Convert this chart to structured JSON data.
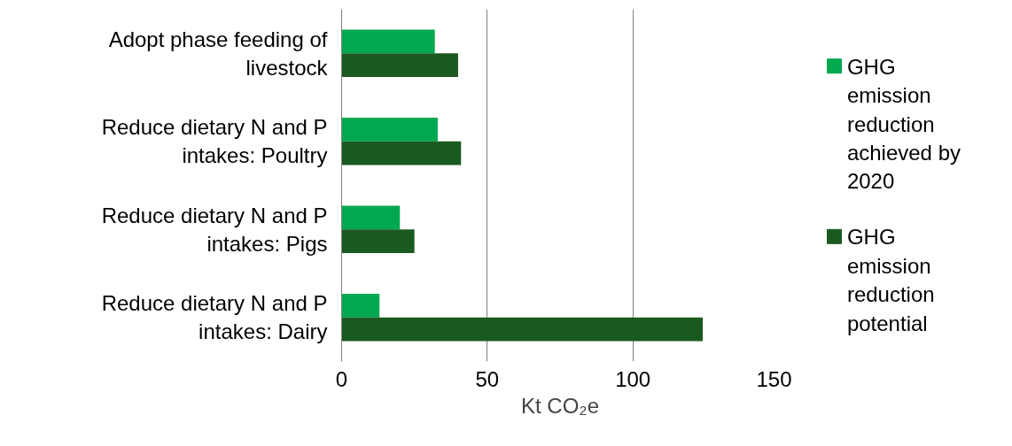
{
  "chart_data": {
    "type": "bar",
    "orientation": "horizontal",
    "xlabel": "Kt CO₂e",
    "categories": [
      "Adopt phase feeding of livestock",
      "Reduce dietary N and P intakes: Poultry",
      "Reduce dietary N and P intakes: Pigs",
      "Reduce dietary N and P intakes: Dairy"
    ],
    "series": [
      {
        "name": "GHG emission reduction achieved by 2020",
        "color": "#00a84f",
        "values": [
          32,
          33,
          20,
          13
        ]
      },
      {
        "name": "GHG emission reduction potential",
        "color": "#1a5a1f",
        "values": [
          40,
          41,
          25,
          124
        ]
      }
    ],
    "xlim": [
      0,
      150
    ],
    "xticks": [
      0,
      50,
      100,
      150
    ],
    "grid": "x",
    "legend": "right"
  }
}
